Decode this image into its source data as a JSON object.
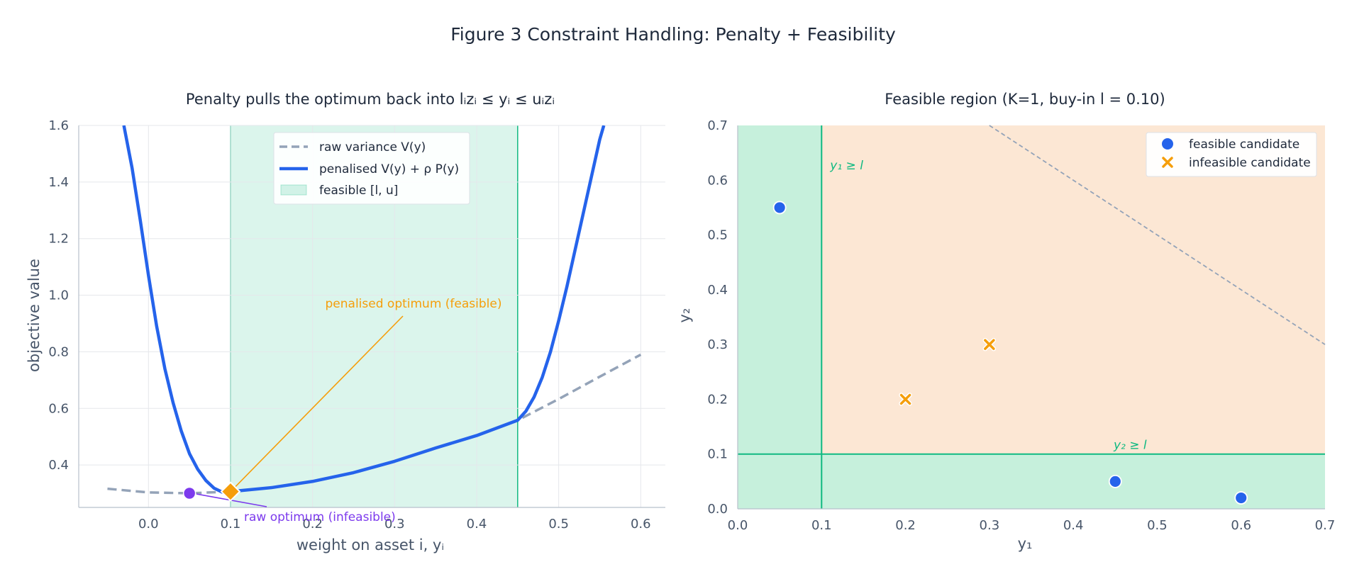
{
  "figure_title": "Figure 3  Constraint Handling: Penalty + Feasibility",
  "colors": {
    "blue": "#2563eb",
    "gray_dash": "#94a3b8",
    "green": "#10b981",
    "orange": "#f59e0b",
    "purple": "#7c3aed"
  },
  "chart_data": [
    {
      "type": "line",
      "title": "Penalty pulls the optimum back into lᵢzᵢ ≤ yᵢ ≤ uᵢzᵢ",
      "xlabel": "weight on asset i,  yᵢ",
      "ylabel": "objective value",
      "xlim": [
        -0.085,
        0.63
      ],
      "ylim": [
        0.25,
        1.6
      ],
      "xticks": [
        "0.0",
        "0.1",
        "0.2",
        "0.3",
        "0.4",
        "0.5",
        "0.6"
      ],
      "yticks": [
        "0.4",
        "0.6",
        "0.8",
        "1.0",
        "1.2",
        "1.4",
        "1.6"
      ],
      "grid": true,
      "feasible_band": [
        0.1,
        0.45
      ],
      "legend": {
        "placement": "top-center",
        "entries": [
          "raw variance  V(y)",
          "penalised  V(y) + ρ P(y)",
          "feasible [l, u]"
        ]
      },
      "series": [
        {
          "name": "raw variance  V(y)",
          "style": "dashed",
          "x": [
            -0.05,
            0.0,
            0.05,
            0.1,
            0.15,
            0.2,
            0.25,
            0.3,
            0.35,
            0.4,
            0.45,
            0.5,
            0.55,
            0.6
          ],
          "y": [
            0.316,
            0.303,
            0.3,
            0.306,
            0.32,
            0.342,
            0.373,
            0.413,
            0.46,
            0.504,
            0.558,
            0.633,
            0.712,
            0.79
          ]
        },
        {
          "name": "penalised  V(y) + ρ P(y)",
          "style": "solid",
          "x": [
            -0.03,
            -0.02,
            -0.01,
            0.0,
            0.01,
            0.02,
            0.03,
            0.04,
            0.05,
            0.06,
            0.07,
            0.08,
            0.09,
            0.1,
            0.15,
            0.2,
            0.25,
            0.3,
            0.35,
            0.4,
            0.45,
            0.46,
            0.47,
            0.48,
            0.49,
            0.5,
            0.51,
            0.52,
            0.53,
            0.54,
            0.55,
            0.555
          ],
          "y": [
            1.6,
            1.45,
            1.265,
            1.07,
            0.89,
            0.74,
            0.62,
            0.52,
            0.44,
            0.385,
            0.345,
            0.318,
            0.304,
            0.306,
            0.32,
            0.342,
            0.373,
            0.413,
            0.46,
            0.504,
            0.558,
            0.59,
            0.64,
            0.71,
            0.8,
            0.91,
            1.03,
            1.16,
            1.29,
            1.42,
            1.55,
            1.6
          ]
        }
      ],
      "markers": [
        {
          "label": "raw optimum  (infeasible)",
          "x": 0.05,
          "y": 0.3,
          "shape": "circle"
        },
        {
          "label": "penalised optimum  (feasible)",
          "x": 0.1,
          "y": 0.306,
          "shape": "diamond"
        }
      ]
    },
    {
      "type": "scatter",
      "title": "Feasible region  (K=1, buy-in l = 0.10)",
      "xlabel": "y₁",
      "ylabel": "y₂",
      "xlim": [
        0.0,
        0.7
      ],
      "ylim": [
        0.0,
        0.7
      ],
      "xticks": [
        "0.0",
        "0.1",
        "0.2",
        "0.3",
        "0.4",
        "0.5",
        "0.6",
        "0.7"
      ],
      "yticks": [
        "0.0",
        "0.1",
        "0.2",
        "0.3",
        "0.4",
        "0.5",
        "0.6",
        "0.7"
      ],
      "grid": false,
      "buy_in": 0.1,
      "budget_line": {
        "x": [
          0.3,
          0.7
        ],
        "y": [
          0.7,
          0.3
        ]
      },
      "threshold_labels": [
        "y₁ ≥ l",
        "y₂ ≥ l"
      ],
      "legend": {
        "placement": "top-right",
        "entries": [
          "feasible candidate",
          "infeasible candidate"
        ]
      },
      "series": [
        {
          "name": "feasible candidate",
          "shape": "circle",
          "x": [
            0.05,
            0.45,
            0.6
          ],
          "y": [
            0.55,
            0.05,
            0.02
          ]
        },
        {
          "name": "infeasible candidate",
          "shape": "x",
          "x": [
            0.2,
            0.3
          ],
          "y": [
            0.2,
            0.3
          ]
        }
      ]
    }
  ]
}
